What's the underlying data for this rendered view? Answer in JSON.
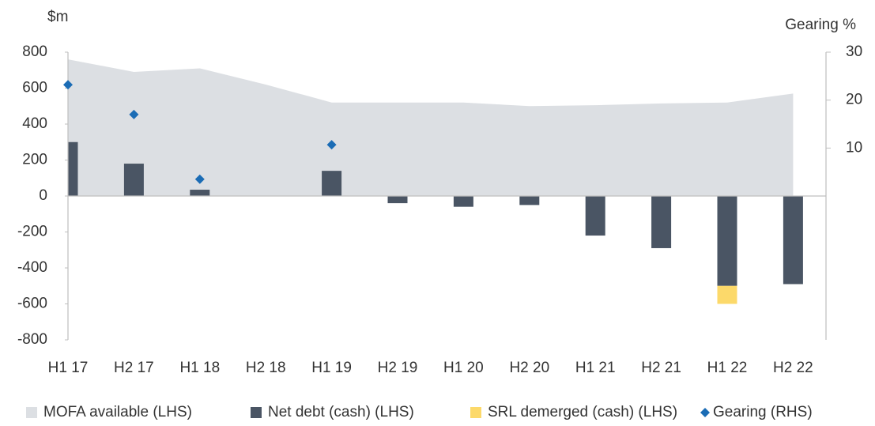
{
  "chart_data": {
    "type": "bar",
    "y_label": "$m",
    "y2_label": "Gearing %",
    "categories": [
      "H1 17",
      "H2 17",
      "H1 18",
      "H2 18",
      "H1 19",
      "H2 19",
      "H1 20",
      "H2 20",
      "H1 21",
      "H2 21",
      "H1 22",
      "H2 22"
    ],
    "series": [
      {
        "name": "MOFA available (LHS)",
        "type": "area",
        "color": "#dcdfe3",
        "values": [
          760,
          690,
          710,
          620,
          520,
          520,
          520,
          500,
          505,
          515,
          520,
          570
        ]
      },
      {
        "name": "Net debt (cash) (LHS)",
        "type": "bar",
        "color": "#4a5564",
        "values": [
          300,
          180,
          35,
          null,
          140,
          -40,
          -60,
          -50,
          -220,
          -290,
          -500,
          -490
        ]
      },
      {
        "name": "SRL demerged (cash) (LHS)",
        "type": "bar",
        "stacked": true,
        "color": "#fcd96a",
        "values": [
          null,
          null,
          null,
          null,
          null,
          null,
          null,
          null,
          null,
          null,
          -100,
          null
        ]
      },
      {
        "name": "Gearing (RHS)",
        "type": "scatter",
        "axis": "y2",
        "color": "#1b6cb5",
        "values": [
          23.2,
          17,
          3.5,
          null,
          10.7,
          null,
          null,
          null,
          null,
          null,
          null,
          null
        ]
      }
    ],
    "ylim": [
      -800,
      800
    ],
    "yticks": [
      -800,
      -600,
      -400,
      -200,
      0,
      200,
      400,
      600,
      800
    ],
    "y2lim": [
      -30,
      30
    ],
    "y2ticks": [
      10,
      20,
      30
    ],
    "legend": "bottom"
  }
}
